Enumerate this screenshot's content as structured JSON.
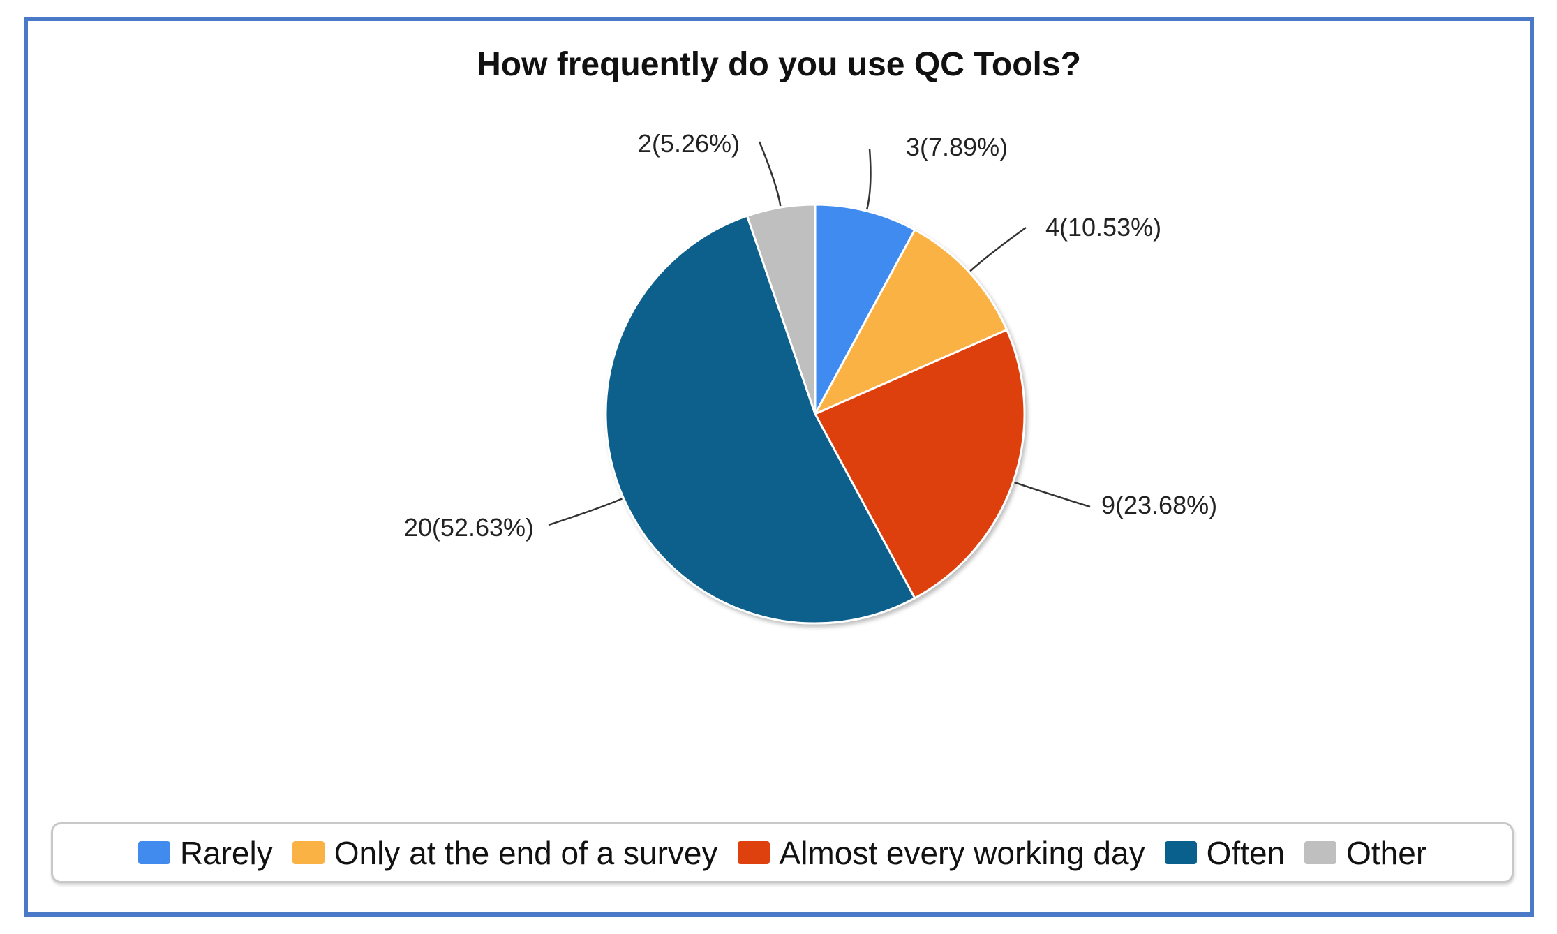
{
  "chart_data": {
    "type": "pie",
    "title": "How frequently do you use QC Tools?",
    "categories": [
      "Rarely",
      "Only at the end of a survey",
      "Almost every working day",
      "Often",
      "Other"
    ],
    "values": [
      3,
      4,
      9,
      20,
      2
    ],
    "labels": [
      "3(7.89%)",
      "4(10.53%)",
      "9(23.68%)",
      "20(52.63%)",
      "2(5.26%)"
    ],
    "colors": [
      "#418bef",
      "#fbb244",
      "#de410e",
      "#09608c",
      "#bfbfbf"
    ],
    "legend_position": "bottom"
  }
}
